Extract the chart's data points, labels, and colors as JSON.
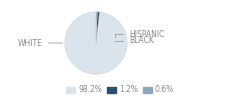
{
  "slices": [
    98.2,
    1.2,
    0.6
  ],
  "labels": [
    "WHITE",
    "HISPANIC",
    "BLACK"
  ],
  "colors": [
    "#d9e4ec",
    "#2d5070",
    "#8aaabb"
  ],
  "legend_labels": [
    "98.2%",
    "1.2%",
    "0.6%"
  ],
  "startangle": 90,
  "bg_color": "#ffffff",
  "text_color": "#888888",
  "line_color": "#999999",
  "font_size": 5.5
}
